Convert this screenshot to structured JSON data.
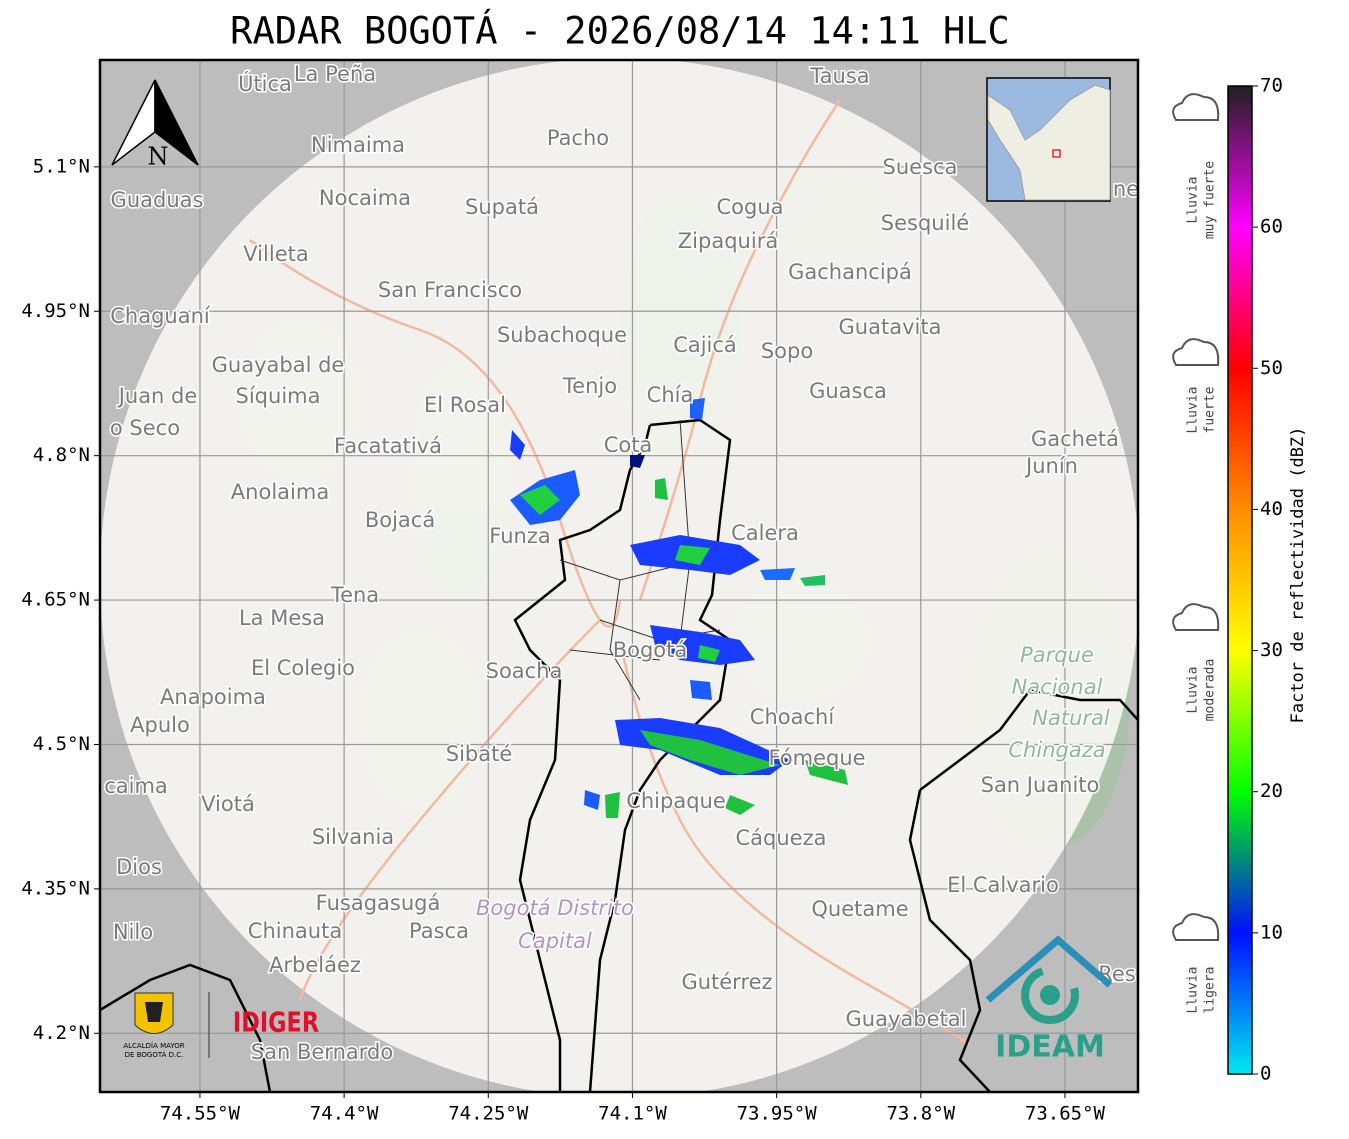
{
  "header": {
    "title": "RADAR BOGOTÁ - 2026/08/14 14:11 HLC"
  },
  "map": {
    "north_arrow": "N",
    "xlim": [
      -74.654,
      -73.574
    ],
    "ylim": [
      4.139,
      5.211
    ],
    "xticks": [
      {
        "value": -74.55,
        "label": "74.55°W"
      },
      {
        "value": -74.4,
        "label": "74.4°W"
      },
      {
        "value": -74.25,
        "label": "74.25°W"
      },
      {
        "value": -74.1,
        "label": "74.1°W"
      },
      {
        "value": -73.95,
        "label": "73.95°W"
      },
      {
        "value": -73.8,
        "label": "73.8°W"
      },
      {
        "value": -73.65,
        "label": "73.65°W"
      }
    ],
    "yticks": [
      {
        "value": 4.2,
        "label": "4.2°N"
      },
      {
        "value": 4.35,
        "label": "4.35°N"
      },
      {
        "value": 4.5,
        "label": "4.5°N"
      },
      {
        "value": 4.65,
        "label": "4.65°N"
      },
      {
        "value": 4.8,
        "label": "4.8°N"
      },
      {
        "value": 4.95,
        "label": "4.95°N"
      },
      {
        "value": 5.1,
        "label": "5.1°N"
      }
    ],
    "places": [
      "Útica",
      "La Peña",
      "Tausa",
      "Pacho",
      "Nimaima",
      "Suesca",
      "Guaduas",
      "Nocaima",
      "Supatá",
      "Cogua",
      "Sesquilé",
      "Zipaquirá",
      "Villeta",
      "Gachancipá",
      "San Francisco",
      "Chaguaní",
      "Guatavita",
      "Subachoque",
      "Cajicá",
      "Sopo",
      "Guayabal de",
      "Síquima",
      "Tenjo",
      "Chía",
      "Guasca",
      "Juan de",
      "o Seco",
      "El Rosal",
      "Gachetá",
      "Junín",
      "Facatativá",
      "Cota",
      "Anolaima",
      "Bojacá",
      "Funza",
      "Calera",
      "Tena",
      "La Mesa",
      "Parque",
      "Nacional",
      "Natural",
      "Chingaza",
      "El Colegio",
      "Soacha",
      "Bogotá",
      "Anapoima",
      "Apulo",
      "Choachí",
      "Sibaté",
      "Fómeque",
      "San Juanito",
      "caima",
      "Viotá",
      "Chipaque",
      "Silvania",
      "Cáqueza",
      "Dios",
      "El Calvario",
      "Fusagasugá",
      "Bogotá Distrito",
      "Capital",
      "Quetame",
      "Nilo",
      "Chinauta",
      "Pasca",
      "Arbeláez",
      "Gutérrez",
      "Res",
      "Guayabetal",
      "San Bernardo",
      "ne"
    ],
    "logos": {
      "alcaldia": "ALCALDÍA MAYOR",
      "alcaldia_sub": "DE BOGOTÁ D.C.",
      "idiger": "IDIGER",
      "ideam": "IDEAM"
    }
  },
  "colorbar": {
    "label": "Factor de reflectividad (dBZ)",
    "lim": [
      0,
      70
    ],
    "ticks": [
      0,
      10,
      20,
      30,
      40,
      50,
      60,
      70
    ],
    "colors": [
      "#00e8f0",
      "#0010ff",
      "#00ff00",
      "#ffff00",
      "#ff8c00",
      "#ff0000",
      "#ff00ff",
      "#202020"
    ]
  },
  "rain_labels": [
    [
      "Lluvia",
      "muy fuerte"
    ],
    [
      "Lluvia",
      "fuerte"
    ],
    [
      "Lluvia",
      "moderada"
    ],
    [
      "Lluvia",
      "ligera"
    ]
  ]
}
